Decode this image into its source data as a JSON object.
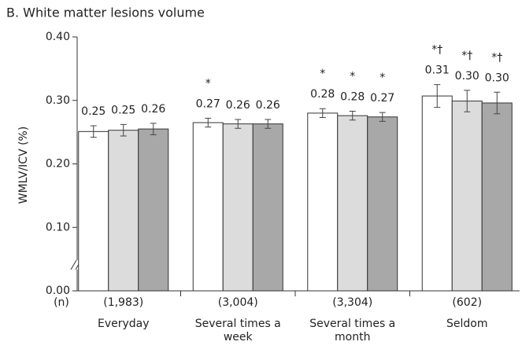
{
  "chart_data": {
    "type": "bar",
    "title": "B. White matter lesions volume",
    "y_label": "WMLV/ICV (%)",
    "categories": [
      "Everyday",
      "Several times a week",
      "Several times a month",
      "Seldom"
    ],
    "n_label": "(n)",
    "n_values": [
      "(1,983)",
      "(3,004)",
      "(3,304)",
      "(602)"
    ],
    "ylim": [
      0,
      0.4
    ],
    "yticks": [
      {
        "value": 0,
        "label": "0.00"
      },
      {
        "value": 0.1,
        "label": "0.10"
      },
      {
        "value": 0.2,
        "label": "0.20"
      },
      {
        "value": 0.3,
        "label": "0.30"
      },
      {
        "value": 0.4,
        "label": "0.40"
      }
    ],
    "series": [
      {
        "color": "#ffffff",
        "values": [
          0.251,
          0.265,
          0.28,
          0.307
        ],
        "value_labels": [
          "0.25",
          "0.27",
          "0.28",
          "0.31"
        ],
        "errors": [
          0.009,
          0.007,
          0.007,
          0.018
        ],
        "markers": [
          null,
          "*",
          "*",
          "*†"
        ]
      },
      {
        "color": "#dcdcdc",
        "values": [
          0.253,
          0.263,
          0.276,
          0.299
        ],
        "value_labels": [
          "0.25",
          "0.26",
          "0.28",
          "0.30"
        ],
        "errors": [
          0.009,
          0.007,
          0.007,
          0.017
        ],
        "markers": [
          null,
          null,
          "*",
          "*†"
        ]
      },
      {
        "color": "#a8a8a8",
        "values": [
          0.255,
          0.263,
          0.274,
          0.296
        ],
        "value_labels": [
          "0.26",
          "0.26",
          "0.27",
          "0.30"
        ],
        "errors": [
          0.009,
          0.007,
          0.007,
          0.017
        ],
        "markers": [
          null,
          null,
          "*",
          "*†"
        ]
      }
    ]
  }
}
